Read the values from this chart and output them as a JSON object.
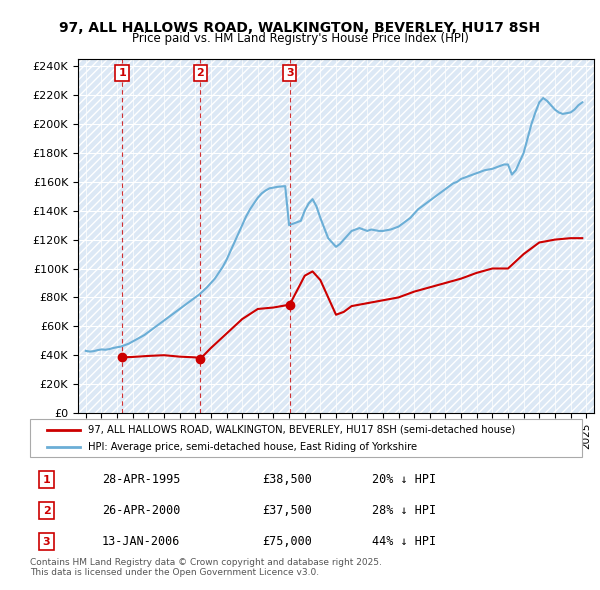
{
  "title": "97, ALL HALLOWS ROAD, WALKINGTON, BEVERLEY, HU17 8SH",
  "subtitle": "Price paid vs. HM Land Registry's House Price Index (HPI)",
  "ylabel_ticks": [
    "£0",
    "£20K",
    "£40K",
    "£60K",
    "£80K",
    "£100K",
    "£120K",
    "£140K",
    "£160K",
    "£180K",
    "£200K",
    "£220K",
    "£240K"
  ],
  "ytick_values": [
    0,
    20000,
    40000,
    60000,
    80000,
    100000,
    120000,
    140000,
    160000,
    180000,
    200000,
    220000,
    240000
  ],
  "ylim": [
    0,
    245000
  ],
  "xlim_start": 1992.5,
  "xlim_end": 2025.5,
  "legend_line1": "97, ALL HALLOWS ROAD, WALKINGTON, BEVERLEY, HU17 8SH (semi-detached house)",
  "legend_line2": "HPI: Average price, semi-detached house, East Riding of Yorkshire",
  "sale_dates": [
    1995.32,
    2000.32,
    2006.04
  ],
  "sale_prices": [
    38500,
    37500,
    75000
  ],
  "sale_labels": [
    "1",
    "2",
    "3"
  ],
  "sale_info": [
    {
      "label": "1",
      "date": "28-APR-1995",
      "price": "£38,500",
      "pct": "20% ↓ HPI"
    },
    {
      "label": "2",
      "date": "26-APR-2000",
      "price": "£37,500",
      "pct": "28% ↓ HPI"
    },
    {
      "label": "3",
      "date": "13-JAN-2006",
      "price": "£75,000",
      "pct": "44% ↓ HPI"
    }
  ],
  "footnote": "Contains HM Land Registry data © Crown copyright and database right 2025.\nThis data is licensed under the Open Government Licence v3.0.",
  "hpi_color": "#6baed6",
  "sale_color": "#cc0000",
  "background_hatched": true,
  "hpi_data_x": [
    1993.0,
    1993.25,
    1993.5,
    1993.75,
    1994.0,
    1994.25,
    1994.5,
    1994.75,
    1995.0,
    1995.25,
    1995.5,
    1995.75,
    1996.0,
    1996.25,
    1996.5,
    1996.75,
    1997.0,
    1997.25,
    1997.5,
    1997.75,
    1998.0,
    1998.25,
    1998.5,
    1998.75,
    1999.0,
    1999.25,
    1999.5,
    1999.75,
    2000.0,
    2000.25,
    2000.5,
    2000.75,
    2001.0,
    2001.25,
    2001.5,
    2001.75,
    2002.0,
    2002.25,
    2002.5,
    2002.75,
    2003.0,
    2003.25,
    2003.5,
    2003.75,
    2004.0,
    2004.25,
    2004.5,
    2004.75,
    2005.0,
    2005.25,
    2005.5,
    2005.75,
    2006.0,
    2006.25,
    2006.5,
    2006.75,
    2007.0,
    2007.25,
    2007.5,
    2007.75,
    2008.0,
    2008.25,
    2008.5,
    2008.75,
    2009.0,
    2009.25,
    2009.5,
    2009.75,
    2010.0,
    2010.25,
    2010.5,
    2010.75,
    2011.0,
    2011.25,
    2011.5,
    2011.75,
    2012.0,
    2012.25,
    2012.5,
    2012.75,
    2013.0,
    2013.25,
    2013.5,
    2013.75,
    2014.0,
    2014.25,
    2014.5,
    2014.75,
    2015.0,
    2015.25,
    2015.5,
    2015.75,
    2016.0,
    2016.25,
    2016.5,
    2016.75,
    2017.0,
    2017.25,
    2017.5,
    2017.75,
    2018.0,
    2018.25,
    2018.5,
    2018.75,
    2019.0,
    2019.25,
    2019.5,
    2019.75,
    2020.0,
    2020.25,
    2020.5,
    2020.75,
    2021.0,
    2021.25,
    2021.5,
    2021.75,
    2022.0,
    2022.25,
    2022.5,
    2022.75,
    2023.0,
    2023.25,
    2023.5,
    2023.75,
    2024.0,
    2024.25,
    2024.5,
    2024.75
  ],
  "hpi_data_y": [
    43000,
    42500,
    42800,
    43500,
    44000,
    43800,
    44200,
    45000,
    45500,
    46000,
    47000,
    48000,
    49500,
    51000,
    52500,
    54000,
    56000,
    58000,
    60000,
    62000,
    64000,
    66000,
    68000,
    70000,
    72000,
    74000,
    76000,
    78000,
    80000,
    82000,
    84500,
    87000,
    90000,
    93000,
    97000,
    101000,
    106000,
    112000,
    118000,
    124000,
    130000,
    136000,
    141000,
    145000,
    149000,
    152000,
    154000,
    155500,
    156000,
    156500,
    156800,
    157000,
    130000,
    131000,
    132000,
    133000,
    140000,
    145000,
    148000,
    143000,
    135000,
    128000,
    121000,
    118000,
    115000,
    117000,
    120000,
    123000,
    126000,
    127000,
    128000,
    127000,
    126000,
    127000,
    126500,
    126000,
    126000,
    126500,
    127000,
    128000,
    129000,
    131000,
    133000,
    135000,
    138000,
    141000,
    143000,
    145000,
    147000,
    149000,
    151000,
    153000,
    155000,
    157000,
    159000,
    160000,
    162000,
    163000,
    164000,
    165000,
    166000,
    167000,
    168000,
    168500,
    169000,
    170000,
    171000,
    172000,
    172000,
    165000,
    168000,
    174000,
    180000,
    190000,
    200000,
    208000,
    215000,
    218000,
    216000,
    213000,
    210000,
    208000,
    207000,
    207500,
    208000,
    210000,
    213000,
    215000
  ],
  "price_line_x": [
    1995.32,
    2000.32,
    2006.04,
    2025.5
  ],
  "price_line_y": [
    38500,
    37500,
    75000,
    120000
  ]
}
